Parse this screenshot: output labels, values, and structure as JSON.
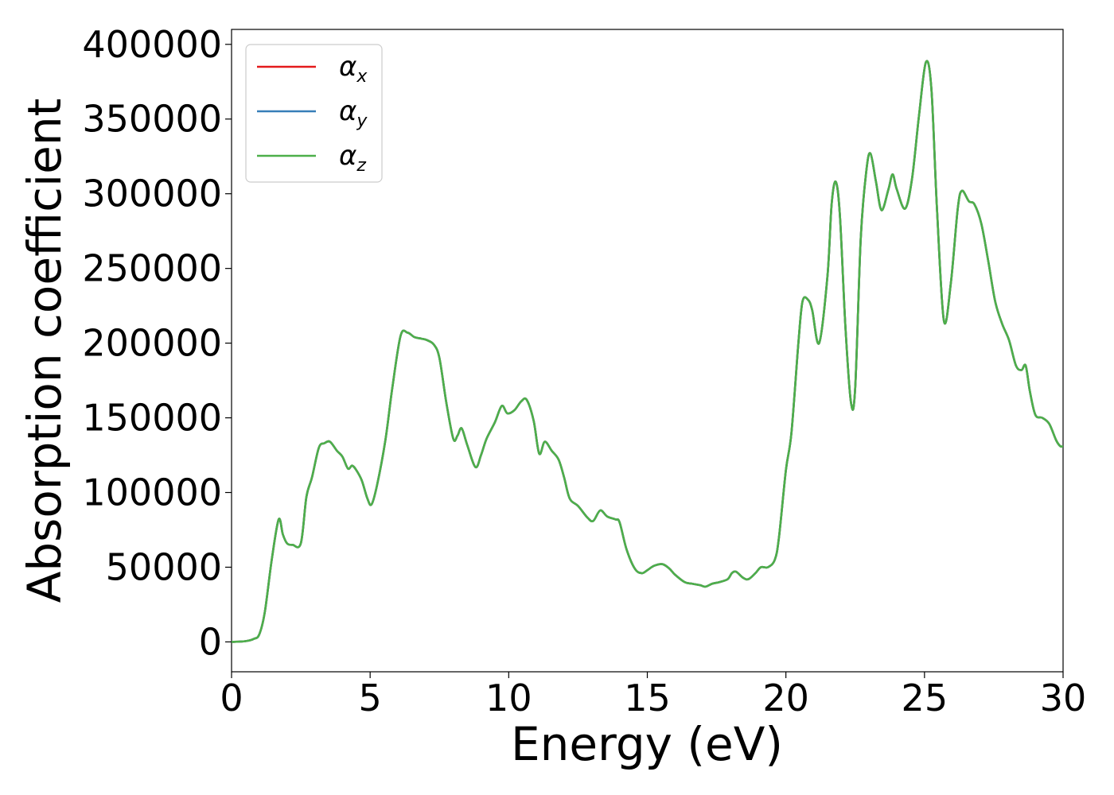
{
  "chart_data": {
    "type": "line",
    "xlabel": "Energy (eV)",
    "ylabel": "Absorption coefficient",
    "xlim": [
      0,
      30
    ],
    "ylim": [
      -20000,
      410000
    ],
    "x_ticks": [
      0,
      5,
      10,
      15,
      20,
      25,
      30
    ],
    "y_ticks": [
      0,
      50000,
      100000,
      150000,
      200000,
      250000,
      300000,
      350000,
      400000
    ],
    "x_tick_labels": [
      "0",
      "5",
      "10",
      "15",
      "20",
      "25",
      "30"
    ],
    "y_tick_labels": [
      "0",
      "50000",
      "100000",
      "150000",
      "200000",
      "250000",
      "300000",
      "350000",
      "400000"
    ],
    "grid": false,
    "legend_position": "top-left",
    "series": [
      {
        "name": "α",
        "subscript": "x",
        "color": "#e41a1c"
      },
      {
        "name": "α",
        "subscript": "y",
        "color": "#377eb8"
      },
      {
        "name": "α",
        "subscript": "z",
        "color": "#4daf4a"
      }
    ],
    "x": [
      0,
      0.5,
      0.8,
      1.0,
      1.2,
      1.45,
      1.7,
      1.85,
      2.0,
      2.2,
      2.5,
      2.7,
      2.9,
      3.15,
      3.35,
      3.55,
      3.8,
      4.0,
      4.2,
      4.35,
      4.5,
      4.7,
      4.9,
      5.05,
      5.25,
      5.55,
      5.8,
      6.1,
      6.35,
      6.6,
      6.85,
      7.05,
      7.3,
      7.5,
      7.75,
      8.0,
      8.15,
      8.3,
      8.5,
      8.8,
      9.0,
      9.2,
      9.5,
      9.75,
      9.95,
      10.2,
      10.45,
      10.65,
      10.9,
      11.1,
      11.3,
      11.55,
      11.8,
      12.0,
      12.2,
      12.5,
      12.85,
      13.05,
      13.3,
      13.55,
      13.85,
      14.0,
      14.25,
      14.55,
      14.8,
      15.0,
      15.25,
      15.55,
      15.8,
      16.0,
      16.35,
      16.6,
      16.9,
      17.1,
      17.35,
      17.6,
      17.9,
      18.05,
      18.2,
      18.45,
      18.65,
      18.9,
      19.1,
      19.35,
      19.6,
      19.75,
      20.0,
      20.2,
      20.45,
      20.6,
      20.8,
      20.95,
      21.2,
      21.5,
      21.65,
      21.8,
      21.95,
      22.15,
      22.35,
      22.5,
      22.7,
      22.9,
      23.05,
      23.25,
      23.45,
      23.7,
      23.85,
      24.0,
      24.3,
      24.55,
      24.8,
      25.05,
      25.25,
      25.45,
      25.7,
      25.95,
      26.2,
      26.35,
      26.6,
      26.8,
      27.05,
      27.3,
      27.55,
      27.8,
      28.05,
      28.3,
      28.5,
      28.65,
      28.8,
      29.0,
      29.25,
      29.5,
      29.75,
      29.9,
      30.0
    ],
    "y": [
      0,
      500,
      2000,
      5000,
      20000,
      55000,
      82000,
      72000,
      66000,
      65000,
      66000,
      97000,
      110000,
      130000,
      133000,
      134000,
      128000,
      124000,
      116000,
      118000,
      115000,
      108000,
      96000,
      92000,
      105000,
      135000,
      170000,
      205000,
      207000,
      204000,
      203000,
      202000,
      199000,
      190000,
      160000,
      136000,
      138000,
      143000,
      132000,
      117000,
      125000,
      136000,
      147000,
      158000,
      153000,
      155000,
      161000,
      162000,
      148000,
      126000,
      134000,
      128000,
      122000,
      110000,
      96000,
      91000,
      83000,
      81000,
      88000,
      84000,
      82000,
      80000,
      62000,
      49000,
      46000,
      48000,
      51000,
      52000,
      49000,
      45000,
      40000,
      39000,
      38000,
      37000,
      39000,
      40000,
      42000,
      46000,
      47000,
      43000,
      42000,
      46000,
      50000,
      50000,
      55000,
      70000,
      115000,
      140000,
      200000,
      228000,
      229000,
      222000,
      200000,
      245000,
      293000,
      308000,
      285000,
      210000,
      160000,
      170000,
      270000,
      315000,
      327000,
      308000,
      289000,
      303000,
      313000,
      303000,
      290000,
      310000,
      352000,
      388000,
      370000,
      290000,
      215000,
      240000,
      290000,
      302000,
      295000,
      293000,
      280000,
      255000,
      228000,
      213000,
      202000,
      185000,
      182000,
      185000,
      168000,
      152000,
      150000,
      146000,
      135000,
      131000,
      131000
    ]
  }
}
